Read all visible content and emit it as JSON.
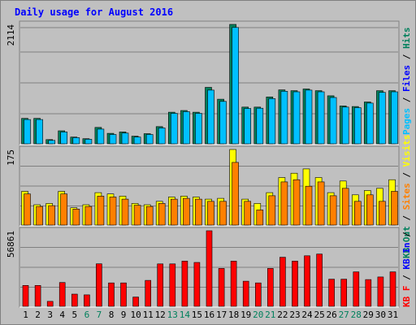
{
  "chart_data": {
    "type": "bar",
    "title": "Daily usage for August 2016",
    "categories": [
      "1",
      "2",
      "3",
      "4",
      "5",
      "6",
      "7",
      "8",
      "9",
      "10",
      "11",
      "12",
      "13",
      "14",
      "15",
      "16",
      "17",
      "18",
      "19",
      "20",
      "21",
      "22",
      "23",
      "24",
      "25",
      "26",
      "27",
      "28",
      "29",
      "30",
      "31"
    ],
    "weekend_days": [
      "6",
      "7",
      "13",
      "14",
      "20",
      "21",
      "27",
      "28"
    ],
    "panels": [
      {
        "name": "top",
        "ymax_label": "2114",
        "ymax": 2114,
        "series": [
          {
            "name": "Hits",
            "color": "#00805c",
            "values": [
              450,
              450,
              75,
              230,
              120,
              90,
              290,
              185,
              210,
              135,
              180,
              305,
              560,
              590,
              560,
              1000,
              790,
              2114,
              650,
              650,
              830,
              955,
              940,
              970,
              940,
              850,
              670,
              660,
              740,
              940,
              940
            ]
          },
          {
            "name": "Files",
            "color": "#0000ff",
            "values": [
              430,
              430,
              60,
              210,
              110,
              80,
              260,
              165,
              190,
              120,
              165,
              280,
              540,
              570,
              540,
              950,
              750,
              2060,
              625,
              630,
              800,
              930,
              920,
              950,
              920,
              820,
              650,
              640,
              720,
              910,
              920
            ]
          },
          {
            "name": "Pages",
            "color": "#00c0ff",
            "values": [
              430,
              430,
              60,
              210,
              110,
              80,
              260,
              165,
              190,
              120,
              165,
              280,
              540,
              570,
              540,
              950,
              750,
              2060,
              625,
              630,
              800,
              930,
              920,
              950,
              920,
              820,
              650,
              640,
              720,
              910,
              920
            ]
          }
        ],
        "legend": [
          "Pages",
          "Files",
          "Hits"
        ]
      },
      {
        "name": "middle",
        "ymax_label": "175",
        "ymax": 175,
        "series": [
          {
            "name": "Visits",
            "color": "#ffff00",
            "values": [
              78,
              47,
              50,
              78,
              40,
              47,
              75,
              72,
              67,
              50,
              47,
              55,
              65,
              67,
              65,
              60,
              62,
              175,
              60,
              50,
              75,
              110,
              120,
              130,
              110,
              75,
              102,
              70,
              80,
              85,
              105
            ]
          },
          {
            "name": "Sites",
            "color": "#ff8000",
            "values": [
              72,
              43,
              45,
              72,
              37,
              43,
              67,
              65,
              60,
              46,
              43,
              50,
              60,
              62,
              60,
              55,
              55,
              145,
              55,
              35,
              68,
              100,
              105,
              90,
              100,
              68,
              85,
              55,
              70,
              55,
              78
            ]
          }
        ],
        "legend": [
          "Visits",
          "Sites",
          "KB Out"
        ]
      },
      {
        "name": "bottom",
        "ymax_label": "56861",
        "ymax": 56861,
        "series": [
          {
            "name": "KB F",
            "color": "#ff0000",
            "values": [
              15700,
              15700,
              3700,
              17900,
              9200,
              8600,
              32000,
              17600,
              17600,
              7000,
              19500,
              31900,
              31900,
              34000,
              33000,
              56861,
              28500,
              34000,
              18900,
              17600,
              28500,
              36900,
              34000,
              38000,
              39300,
              20400,
              20400,
              25900,
              20100,
              22100,
              25900
            ]
          }
        ],
        "legend": [
          "KB In",
          "KB F"
        ]
      }
    ]
  },
  "colors": {
    "background": "#c0c0c0",
    "plot_bg": "#c0c0c0",
    "title": "#0000ff",
    "grid": "#808080",
    "weekday_label": "#000000",
    "weekend_label": "#00805c",
    "legend_pages": "#00c0ff",
    "legend_files": "#0000ff",
    "legend_hits": "#00805c",
    "legend_visits": "#ffff00",
    "legend_sites": "#ff8000",
    "legend_kbout": "#00805c",
    "legend_kbin": "#0000ff",
    "legend_kbf": "#ff0000"
  }
}
